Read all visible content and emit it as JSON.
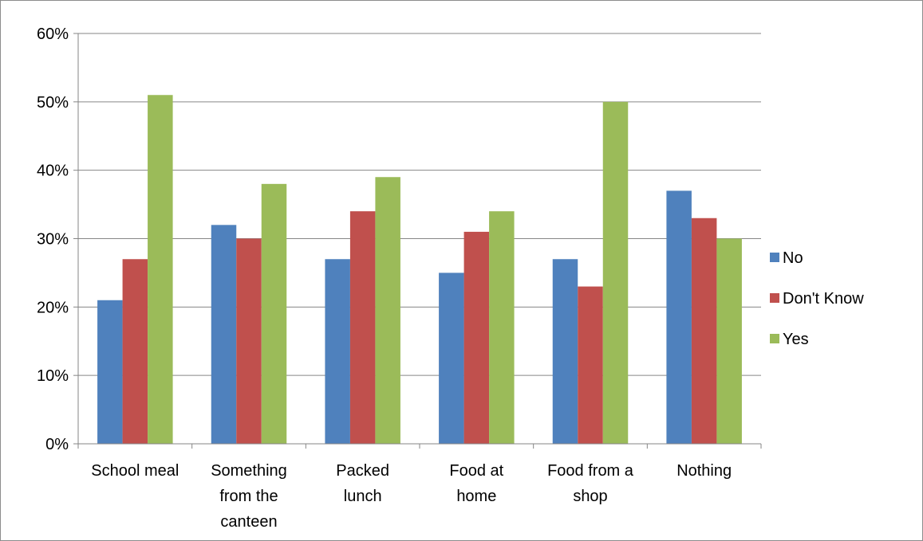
{
  "chart_data": {
    "type": "bar",
    "title": "",
    "xlabel": "",
    "ylabel": "",
    "categories": [
      [
        "School meal"
      ],
      [
        "Something",
        "from the",
        "canteen"
      ],
      [
        "Packed",
        "lunch"
      ],
      [
        "Food at",
        "home"
      ],
      [
        "Food from a",
        "shop"
      ],
      [
        "Nothing"
      ]
    ],
    "series": [
      {
        "name": "No",
        "color": "#4F81BD",
        "values": [
          21,
          32,
          27,
          25,
          27,
          37
        ]
      },
      {
        "name": "Don't Know",
        "color": "#C0504D",
        "values": [
          27,
          30,
          34,
          31,
          23,
          33
        ]
      },
      {
        "name": "Yes",
        "color": "#9BBB59",
        "values": [
          51,
          38,
          39,
          34,
          50,
          30
        ]
      }
    ],
    "ylim": [
      0,
      60
    ],
    "yticks": [
      "0%",
      "10%",
      "20%",
      "30%",
      "40%",
      "50%",
      "60%"
    ],
    "grid": true,
    "legend_position": "right"
  }
}
